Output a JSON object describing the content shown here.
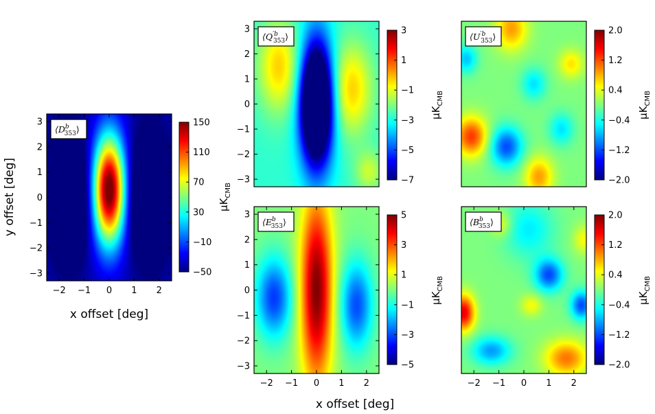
{
  "figure": {
    "common_xlabel": "x offset [deg]",
    "common_ylabel": "y offset [deg]",
    "colorbar_label": "μK",
    "colorbar_label_sub": "CMB",
    "colormap": [
      "#00007f",
      "#0000ff",
      "#007fff",
      "#00ffff",
      "#7fff7f",
      "#ffff00",
      "#ff7f00",
      "#ff0000",
      "#7f0000"
    ]
  },
  "chart_data": [
    {
      "id": "D",
      "type": "heatmap",
      "title": "⟨D",
      "title_sup": "b",
      "title_sub": "353",
      "title_close": "⟩",
      "xlabel": "x offset [deg]",
      "ylabel": "y offset [deg]",
      "xlim": [
        -2.5,
        2.5
      ],
      "ylim": [
        -3.3,
        3.3
      ],
      "xticks": [
        -2,
        -1,
        0,
        1,
        2
      ],
      "xtick_labels": [
        "−2",
        "−1",
        "0",
        "1",
        "2"
      ],
      "yticks": [
        3,
        2,
        1,
        0,
        -1,
        -2,
        -3
      ],
      "ytick_labels": [
        "3",
        "2",
        "1",
        "0",
        "−1",
        "−2",
        "−3"
      ],
      "clim": [
        -50,
        150
      ],
      "colorbar_ticks": [
        150,
        110,
        70,
        30,
        -10,
        -50
      ],
      "colorbar_tick_labels": [
        "150",
        "110",
        "70",
        "30",
        "−10",
        "−50"
      ],
      "blobs": [
        {
          "x": 0,
          "y": 0.3,
          "sx": 0.45,
          "sy": 1.5,
          "a": 1.0
        },
        {
          "x": -1.6,
          "y": 0,
          "sx": 0.55,
          "sy": 1.6,
          "a": -0.34
        },
        {
          "x": 1.6,
          "y": 0,
          "sx": 0.55,
          "sy": 1.6,
          "a": -0.34
        }
      ],
      "base": 0.05
    },
    {
      "id": "Q",
      "type": "heatmap",
      "title": "⟨Q",
      "title_sup": "′b",
      "title_sub": "353",
      "title_close": "⟩",
      "xlim": [
        -2.5,
        2.5
      ],
      "ylim": [
        -3.3,
        3.3
      ],
      "yticks": [
        3,
        2,
        1,
        0,
        -1,
        -2,
        -3
      ],
      "ytick_labels": [
        "3",
        "2",
        "1",
        "0",
        "−1",
        "−2",
        "−3"
      ],
      "clim": [
        -7,
        3
      ],
      "colorbar_ticks": [
        3,
        1,
        -1,
        -3,
        -5,
        -7
      ],
      "colorbar_tick_labels": [
        "3",
        "1",
        "−1",
        "−3",
        "−5",
        "−7"
      ],
      "blobs": [
        {
          "x": 0,
          "y": 0,
          "sx": 0.45,
          "sy": 1.7,
          "a": -0.92
        },
        {
          "x": -1.5,
          "y": 1.5,
          "sx": 0.6,
          "sy": 1.3,
          "a": 0.25
        },
        {
          "x": 1.4,
          "y": 0.6,
          "sx": 0.6,
          "sy": 1.3,
          "a": 0.25
        },
        {
          "x": 2.1,
          "y": -2.7,
          "sx": 0.4,
          "sy": 0.6,
          "a": 0.15
        }
      ],
      "base": 0.42
    },
    {
      "id": "U",
      "type": "heatmap",
      "title": "⟨U",
      "title_sup": "′b",
      "title_sub": "353",
      "title_close": "⟩",
      "xlim": [
        -2.5,
        2.5
      ],
      "ylim": [
        -3.3,
        3.3
      ],
      "clim": [
        -2.0,
        2.0
      ],
      "colorbar_ticks": [
        2.0,
        1.2,
        0.4,
        -0.4,
        -1.2,
        -2.0
      ],
      "colorbar_tick_labels": [
        "2.0",
        "1.2",
        "0.4",
        "−0.4",
        "−1.2",
        "−2.0"
      ],
      "blobs": [
        {
          "x": -2.1,
          "y": -1.3,
          "sx": 0.45,
          "sy": 0.55,
          "a": 0.32
        },
        {
          "x": -0.5,
          "y": 3.0,
          "sx": 0.45,
          "sy": 0.6,
          "a": 0.22
        },
        {
          "x": 1.9,
          "y": 1.6,
          "sx": 0.35,
          "sy": 0.4,
          "a": 0.15
        },
        {
          "x": 0.6,
          "y": -2.9,
          "sx": 0.4,
          "sy": 0.55,
          "a": 0.22
        },
        {
          "x": -0.7,
          "y": -1.7,
          "sx": 0.45,
          "sy": 0.55,
          "a": -0.3
        },
        {
          "x": 0.4,
          "y": 0.8,
          "sx": 0.35,
          "sy": 0.45,
          "a": -0.15
        },
        {
          "x": 1.5,
          "y": -1.0,
          "sx": 0.35,
          "sy": 0.45,
          "a": -0.15
        },
        {
          "x": -2.3,
          "y": 1.8,
          "sx": 0.3,
          "sy": 0.4,
          "a": -0.18
        }
      ],
      "base": 0.5
    },
    {
      "id": "E",
      "type": "heatmap",
      "title": "⟨E",
      "title_sup": "b",
      "title_sub": "353",
      "title_close": "⟩",
      "xlim": [
        -2.5,
        2.5
      ],
      "ylim": [
        -3.3,
        3.3
      ],
      "xticks": [
        -2,
        -1,
        0,
        1,
        2
      ],
      "xtick_labels": [
        "−2",
        "−1",
        "0",
        "1",
        "2"
      ],
      "yticks": [
        3,
        2,
        1,
        0,
        -1,
        -2,
        -3
      ],
      "ytick_labels": [
        "3",
        "2",
        "1",
        "0",
        "−1",
        "−2",
        "−3"
      ],
      "clim": [
        -5,
        5
      ],
      "colorbar_ticks": [
        5,
        3,
        1,
        -1,
        -3,
        -5
      ],
      "colorbar_tick_labels": [
        "5",
        "3",
        "1",
        "−1",
        "−3",
        "−5"
      ],
      "blobs": [
        {
          "x": 0,
          "y": 0,
          "sx": 0.45,
          "sy": 2.6,
          "a": 0.5
        },
        {
          "x": -1.7,
          "y": -0.3,
          "sx": 0.5,
          "sy": 1.1,
          "a": -0.32
        },
        {
          "x": 1.6,
          "y": -0.6,
          "sx": 0.45,
          "sy": 1.2,
          "a": -0.3
        }
      ],
      "base": 0.5
    },
    {
      "id": "B",
      "type": "heatmap",
      "title": "⟨B",
      "title_sup": "b",
      "title_sub": "353",
      "title_close": "⟩",
      "xlim": [
        -2.5,
        2.5
      ],
      "ylim": [
        -3.3,
        3.3
      ],
      "xticks": [
        -2,
        -1,
        0,
        1,
        2
      ],
      "xtick_labels": [
        "−2",
        "−1",
        "0",
        "1",
        "2"
      ],
      "clim": [
        -2.0,
        2.0
      ],
      "colorbar_ticks": [
        2.0,
        1.2,
        0.4,
        -0.4,
        -1.2,
        -2.0
      ],
      "colorbar_tick_labels": [
        "2.0",
        "1.2",
        "0.4",
        "−0.4",
        "−1.2",
        "−2.0"
      ],
      "blobs": [
        {
          "x": -2.4,
          "y": -0.9,
          "sx": 0.3,
          "sy": 0.5,
          "a": 0.4
        },
        {
          "x": 1.7,
          "y": -2.7,
          "sx": 0.6,
          "sy": 0.5,
          "a": 0.26
        },
        {
          "x": -0.9,
          "y": 2.6,
          "sx": 0.3,
          "sy": 0.35,
          "a": 0.12
        },
        {
          "x": 0.3,
          "y": -0.6,
          "sx": 0.3,
          "sy": 0.3,
          "a": 0.12
        },
        {
          "x": 2.4,
          "y": 2.0,
          "sx": 0.3,
          "sy": 0.4,
          "a": 0.12
        },
        {
          "x": 1.0,
          "y": 0.6,
          "sx": 0.4,
          "sy": 0.45,
          "a": -0.3
        },
        {
          "x": 2.3,
          "y": -0.6,
          "sx": 0.3,
          "sy": 0.4,
          "a": -0.3
        },
        {
          "x": -1.3,
          "y": -2.4,
          "sx": 0.55,
          "sy": 0.4,
          "a": -0.22
        },
        {
          "x": 0.2,
          "y": 2.4,
          "sx": 0.7,
          "sy": 0.8,
          "a": -0.14
        }
      ],
      "base": 0.5
    }
  ]
}
